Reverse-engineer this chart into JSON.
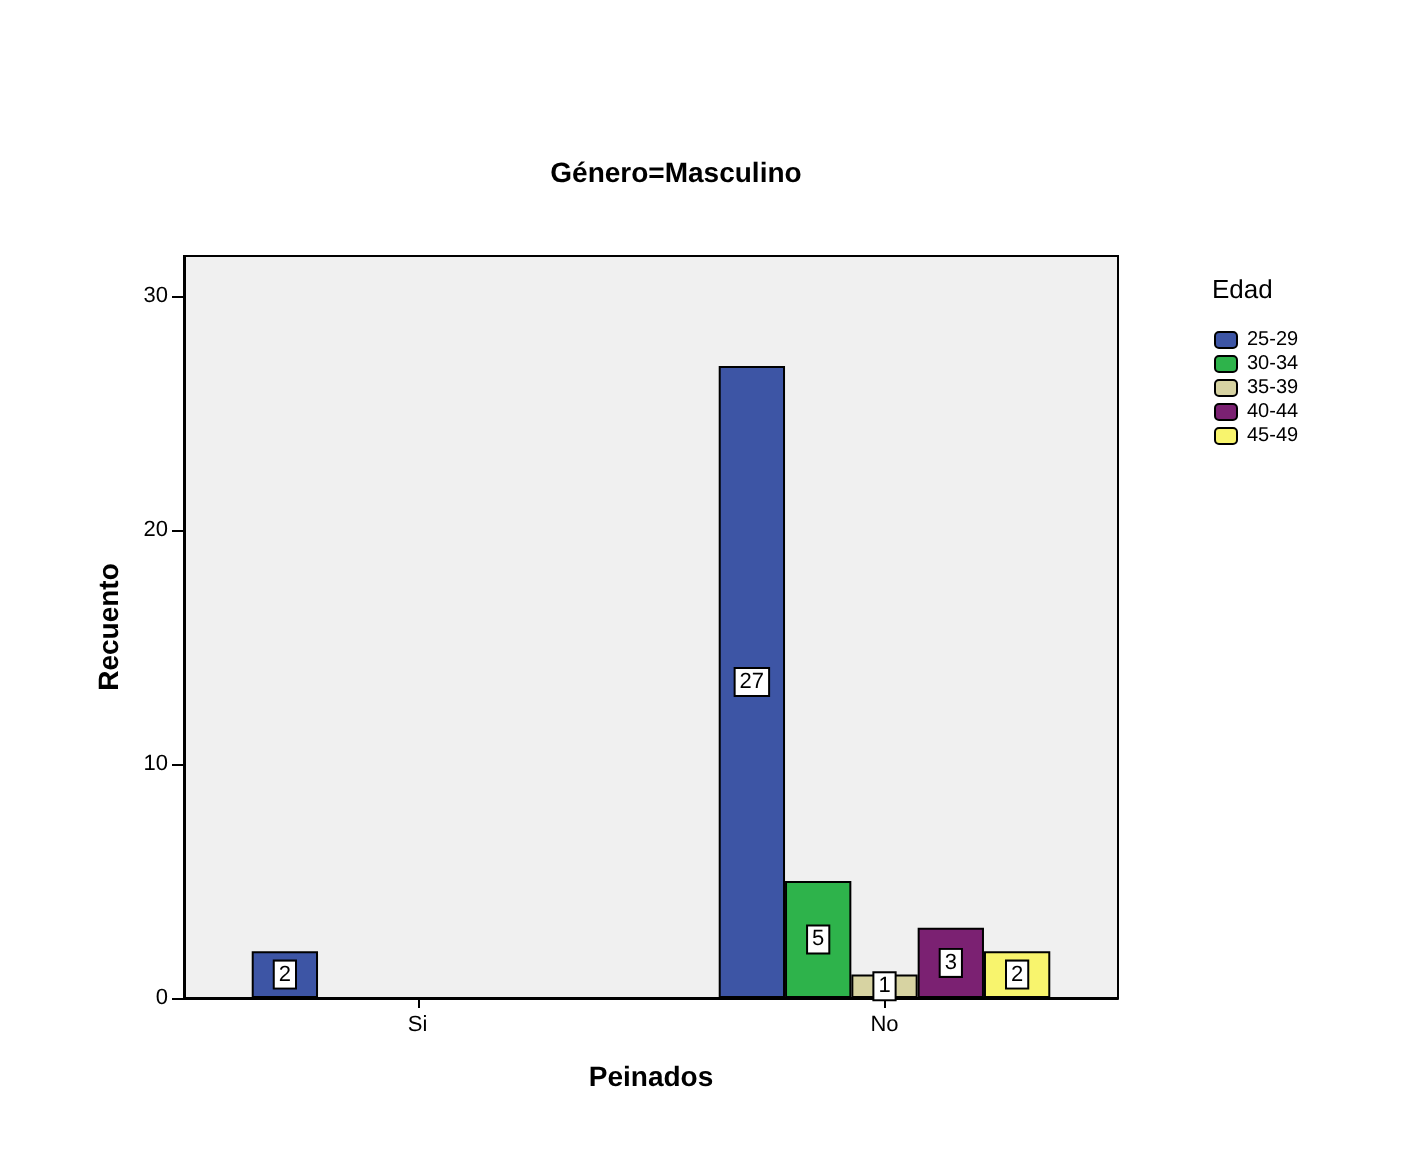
{
  "chart_data": {
    "type": "bar",
    "title": "Género=Masculino",
    "xlabel": "Peinados",
    "ylabel": "Recuento",
    "legend_title": "Edad",
    "categories": [
      "Si",
      "No"
    ],
    "series": [
      {
        "name": "25-29",
        "color": "#3d55a5",
        "values": [
          2,
          27
        ]
      },
      {
        "name": "30-34",
        "color": "#2eb34b",
        "values": [
          null,
          5
        ]
      },
      {
        "name": "35-39",
        "color": "#d7d3a2",
        "values": [
          null,
          1
        ]
      },
      {
        "name": "40-44",
        "color": "#7b2172",
        "values": [
          null,
          3
        ]
      },
      {
        "name": "45-49",
        "color": "#f8f46d",
        "values": [
          null,
          2
        ]
      }
    ],
    "ylim": [
      0,
      31.7
    ],
    "yticks": [
      0,
      10,
      20,
      30
    ],
    "grid": false,
    "legend": "right",
    "data_labels": true
  }
}
